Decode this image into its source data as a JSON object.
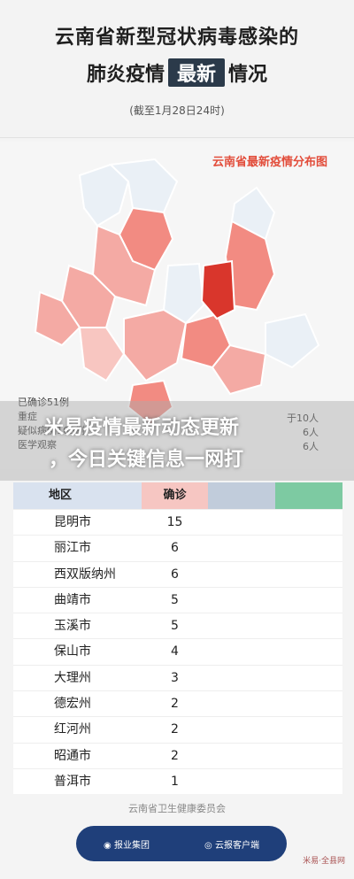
{
  "header": {
    "title_line1": "云南省新型冠状病毒感染的",
    "title_line2_left": "肺炎疫情",
    "title_line2_highlight": "最新",
    "title_line2_right": "情况",
    "date": "(截至1月28日24时)"
  },
  "map": {
    "title": "云南省最新疫情分布图",
    "legend_left": [
      "已确诊51例",
      "重症",
      "疑似病例163例",
      "医学观察"
    ],
    "legend_right": [
      "于10人",
      "6人",
      "6人"
    ]
  },
  "overlay": {
    "line1": "米易疫情最新动态更新",
    "line2": "，今日关键信息一网打"
  },
  "table": {
    "headers": [
      "地区",
      "确诊"
    ],
    "rows": [
      {
        "region": "昆明市",
        "count": "15"
      },
      {
        "region": "丽江市",
        "count": "6"
      },
      {
        "region": "西双版纳州",
        "count": "6"
      },
      {
        "region": "曲靖市",
        "count": "5"
      },
      {
        "region": "玉溪市",
        "count": "5"
      },
      {
        "region": "保山市",
        "count": "4"
      },
      {
        "region": "大理州",
        "count": "3"
      },
      {
        "region": "德宏州",
        "count": "2"
      },
      {
        "region": "红河州",
        "count": "2"
      },
      {
        "region": "昭通市",
        "count": "2"
      },
      {
        "region": "普洱市",
        "count": "1"
      }
    ]
  },
  "footer": {
    "source": "云南省卫生健康委员会",
    "group": "报业集团",
    "app": "云报客户端",
    "badge": "米易·全县网"
  },
  "colors": {
    "map_dark": "#d9362c",
    "map_mid": "#ee7d74",
    "map_light": "#f4aaa4",
    "map_pale": "#eaf0f6",
    "accent": "#e24d3b"
  }
}
